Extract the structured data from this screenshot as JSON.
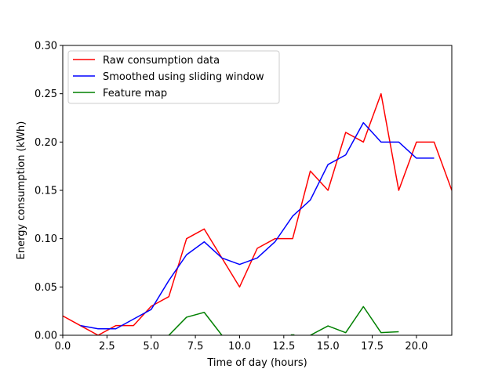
{
  "chart_data": {
    "type": "line",
    "title": "",
    "xlabel": "Time of day (hours)",
    "ylabel": "Energy consumption (kWh)",
    "xlim": [
      0,
      22
    ],
    "ylim": [
      0,
      0.3
    ],
    "x_ticks": [
      0,
      2.5,
      5,
      7.5,
      10,
      12.5,
      15,
      17.5,
      20
    ],
    "x_tick_labels": [
      "0.0",
      "2.5",
      "5.0",
      "7.5",
      "10.0",
      "12.5",
      "15.0",
      "17.5",
      "20.0"
    ],
    "y_ticks": [
      0,
      0.05,
      0.1,
      0.15,
      0.2,
      0.25,
      0.3
    ],
    "y_tick_labels": [
      "0.00",
      "0.05",
      "0.10",
      "0.15",
      "0.20",
      "0.25",
      "0.30"
    ],
    "grid": false,
    "legend_position": "top-left",
    "series": [
      {
        "name": "Raw consumption data",
        "color": "#ff0000",
        "x": [
          0,
          1,
          2,
          3,
          4,
          5,
          6,
          7,
          8,
          9,
          10,
          11,
          12,
          13,
          14,
          15,
          16,
          17,
          18,
          19,
          20,
          21,
          22
        ],
        "values": [
          0.02,
          0.01,
          0.0,
          0.01,
          0.01,
          0.03,
          0.04,
          0.1,
          0.11,
          0.08,
          0.05,
          0.09,
          0.1,
          0.1,
          0.17,
          0.15,
          0.21,
          0.2,
          0.25,
          0.15,
          0.2,
          0.2,
          0.15
        ]
      },
      {
        "name": "Smoothed using sliding window",
        "color": "#0000ff",
        "x": [
          1,
          2,
          3,
          4,
          5,
          6,
          7,
          8,
          9,
          10,
          11,
          12,
          13,
          14,
          15,
          16,
          17,
          18,
          19,
          20,
          21
        ],
        "values": [
          0.01,
          0.0067,
          0.0067,
          0.0167,
          0.0267,
          0.0567,
          0.0833,
          0.0967,
          0.08,
          0.0733,
          0.08,
          0.0967,
          0.1233,
          0.14,
          0.1767,
          0.1867,
          0.22,
          0.2,
          0.2,
          0.1833,
          0.1833
        ]
      },
      {
        "name": "Feature map",
        "color": "#008000",
        "segments": [
          {
            "x": [
              6,
              7,
              8,
              9
            ],
            "values": [
              0.0,
              0.0187,
              0.0237,
              0.0
            ]
          },
          {
            "x": [
              12.9,
              13.1
            ],
            "values": [
              0.0004,
              0.0004
            ]
          },
          {
            "x": [
              14,
              15,
              16,
              17,
              18,
              19
            ],
            "values": [
              0.0,
              0.0097,
              0.0027,
              0.0297,
              0.0027,
              0.0037
            ]
          }
        ]
      }
    ]
  }
}
